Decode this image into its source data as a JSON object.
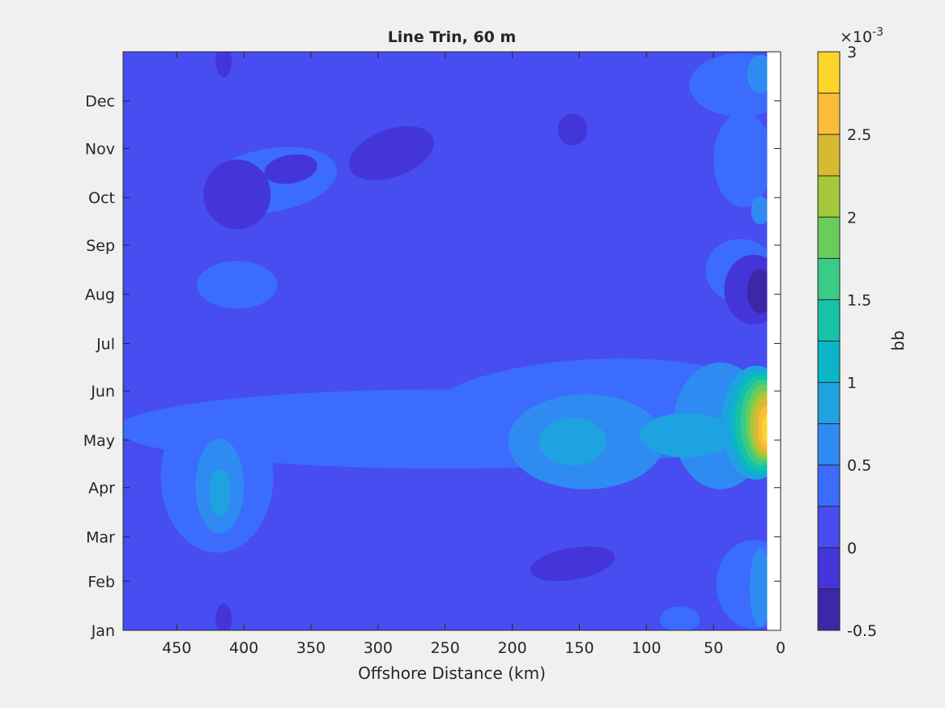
{
  "chart_data": {
    "type": "heatmap",
    "subtype": "filled-contour",
    "title": "Line Trin, 60 m",
    "xlabel": "Offshore Distance (km)",
    "ylabel": "",
    "x_direction": "reversed",
    "xlim": [
      0,
      490
    ],
    "x_ticks": [
      450,
      400,
      350,
      300,
      250,
      200,
      150,
      100,
      50,
      0
    ],
    "y_ticks": [
      "Jan",
      "Feb",
      "Mar",
      "Apr",
      "May",
      "Jun",
      "Jul",
      "Aug",
      "Sep",
      "Oct",
      "Nov",
      "Dec"
    ],
    "y_tick_days": [
      1,
      32,
      60,
      91,
      121,
      152,
      182,
      213,
      244,
      274,
      305,
      335
    ],
    "ylim_days": [
      1,
      366
    ],
    "no_data_region_km": [
      0,
      10
    ],
    "colorbar": {
      "label": "bb",
      "exponent_label": "×10",
      "exponent_power": "-3",
      "levels": [
        -0.5,
        -0.25,
        0,
        0.25,
        0.5,
        0.75,
        1,
        1.25,
        1.5,
        1.75,
        2,
        2.25,
        2.5,
        2.75,
        3
      ],
      "ticks": [
        "-0.5",
        "0",
        "0.5",
        "1",
        "1.5",
        "2",
        "2.5",
        "3"
      ],
      "colors": [
        "#3e26a8",
        "#4435d9",
        "#474df0",
        "#3b6cfd",
        "#2f8bf2",
        "#1fa2e0",
        "#0bb5c8",
        "#16c2a8",
        "#3acb86",
        "#69cd5c",
        "#a4c83b",
        "#d8ba30",
        "#fbbb3b",
        "#fbd52a"
      ]
    },
    "background_value": 0.1,
    "features": [
      {
        "x_km": 415,
        "day": 360,
        "value": -0.1,
        "rx_km": 6,
        "ry_days": 10,
        "rotation": 0
      },
      {
        "x_km": 415,
        "day": 8,
        "value": -0.1,
        "rx_km": 6,
        "ry_days": 10,
        "rotation": 0
      },
      {
        "x_km": 380,
        "day": 285,
        "value": 0.3,
        "rx_km": 50,
        "ry_days": 20,
        "rotation": -10
      },
      {
        "x_km": 405,
        "day": 276,
        "value": -0.1,
        "rx_km": 25,
        "ry_days": 22,
        "rotation": 0
      },
      {
        "x_km": 365,
        "day": 292,
        "value": -0.1,
        "rx_km": 20,
        "ry_days": 9,
        "rotation": -10
      },
      {
        "x_km": 290,
        "day": 302,
        "value": -0.1,
        "rx_km": 33,
        "ry_days": 15,
        "rotation": -20
      },
      {
        "x_km": 155,
        "day": 317,
        "value": -0.1,
        "rx_km": 11,
        "ry_days": 10,
        "rotation": 0
      },
      {
        "x_km": 405,
        "day": 219,
        "value": 0.3,
        "rx_km": 30,
        "ry_days": 15,
        "rotation": 0
      },
      {
        "x_km": 30,
        "day": 228,
        "value": 0.3,
        "rx_km": 26,
        "ry_days": 20,
        "rotation": 0
      },
      {
        "x_km": 20,
        "day": 216,
        "value": -0.1,
        "rx_km": 22,
        "ry_days": 22,
        "rotation": 0
      },
      {
        "x_km": 15,
        "day": 215,
        "value": -0.3,
        "rx_km": 10,
        "ry_days": 14,
        "rotation": 0
      },
      {
        "x_km": 28,
        "day": 298,
        "value": 0.3,
        "rx_km": 22,
        "ry_days": 30,
        "rotation": 0
      },
      {
        "x_km": 15,
        "day": 266,
        "value": 0.55,
        "rx_km": 7,
        "ry_days": 9,
        "rotation": 0
      },
      {
        "x_km": 30,
        "day": 345,
        "value": 0.3,
        "rx_km": 38,
        "ry_days": 20,
        "rotation": 0
      },
      {
        "x_km": 15,
        "day": 352,
        "value": 0.55,
        "rx_km": 10,
        "ry_days": 12,
        "rotation": 0
      },
      {
        "x_km": 20,
        "day": 30,
        "value": 0.3,
        "rx_km": 28,
        "ry_days": 28,
        "rotation": 0
      },
      {
        "x_km": 15,
        "day": 28,
        "value": 0.55,
        "rx_km": 8,
        "ry_days": 25,
        "rotation": 0
      },
      {
        "x_km": 75,
        "day": 8,
        "value": 0.3,
        "rx_km": 15,
        "ry_days": 8,
        "rotation": 0
      },
      {
        "x_km": 155,
        "day": 43,
        "value": -0.1,
        "rx_km": 32,
        "ry_days": 10,
        "rotation": -10
      },
      {
        "x_km": 250,
        "day": 128,
        "value": 0.3,
        "rx_km": 245,
        "ry_days": 25,
        "rotation": 0
      },
      {
        "x_km": 140,
        "day": 145,
        "value": 0.3,
        "rx_km": 120,
        "ry_days": 27,
        "rotation": -3
      },
      {
        "x_km": 420,
        "day": 98,
        "value": 0.3,
        "rx_km": 42,
        "ry_days": 48,
        "rotation": 0
      },
      {
        "x_km": 418,
        "day": 92,
        "value": 0.55,
        "rx_km": 18,
        "ry_days": 30,
        "rotation": 0
      },
      {
        "x_km": 418,
        "day": 88,
        "value": 0.8,
        "rx_km": 8,
        "ry_days": 15,
        "rotation": 0
      },
      {
        "x_km": 145,
        "day": 120,
        "value": 0.55,
        "rx_km": 58,
        "ry_days": 30,
        "rotation": 0
      },
      {
        "x_km": 155,
        "day": 120,
        "value": 0.8,
        "rx_km": 25,
        "ry_days": 15,
        "rotation": 0
      },
      {
        "x_km": 45,
        "day": 130,
        "value": 0.55,
        "rx_km": 35,
        "ry_days": 40,
        "rotation": 0
      },
      {
        "x_km": 70,
        "day": 124,
        "value": 0.8,
        "rx_km": 35,
        "ry_days": 14,
        "rotation": 0
      },
      {
        "x_km": 18,
        "day": 132,
        "value": 0.8,
        "rx_km": 26,
        "ry_days": 36,
        "rotation": 0
      },
      {
        "x_km": 16,
        "day": 132,
        "value": 1.05,
        "rx_km": 22,
        "ry_days": 33,
        "rotation": 0
      },
      {
        "x_km": 15,
        "day": 132,
        "value": 1.3,
        "rx_km": 19,
        "ry_days": 30,
        "rotation": 0
      },
      {
        "x_km": 14,
        "day": 132,
        "value": 1.55,
        "rx_km": 16,
        "ry_days": 27,
        "rotation": 0
      },
      {
        "x_km": 13,
        "day": 132,
        "value": 1.8,
        "rx_km": 13,
        "ry_days": 24,
        "rotation": 0
      },
      {
        "x_km": 12,
        "day": 131,
        "value": 2.05,
        "rx_km": 11,
        "ry_days": 21,
        "rotation": 0
      },
      {
        "x_km": 11,
        "day": 130,
        "value": 2.3,
        "rx_km": 9,
        "ry_days": 18,
        "rotation": 0
      },
      {
        "x_km": 10,
        "day": 129,
        "value": 2.55,
        "rx_km": 7,
        "ry_days": 14,
        "rotation": 0
      },
      {
        "x_km": 9,
        "day": 128,
        "value": 2.8,
        "rx_km": 5,
        "ry_days": 10,
        "rotation": 0
      }
    ]
  }
}
